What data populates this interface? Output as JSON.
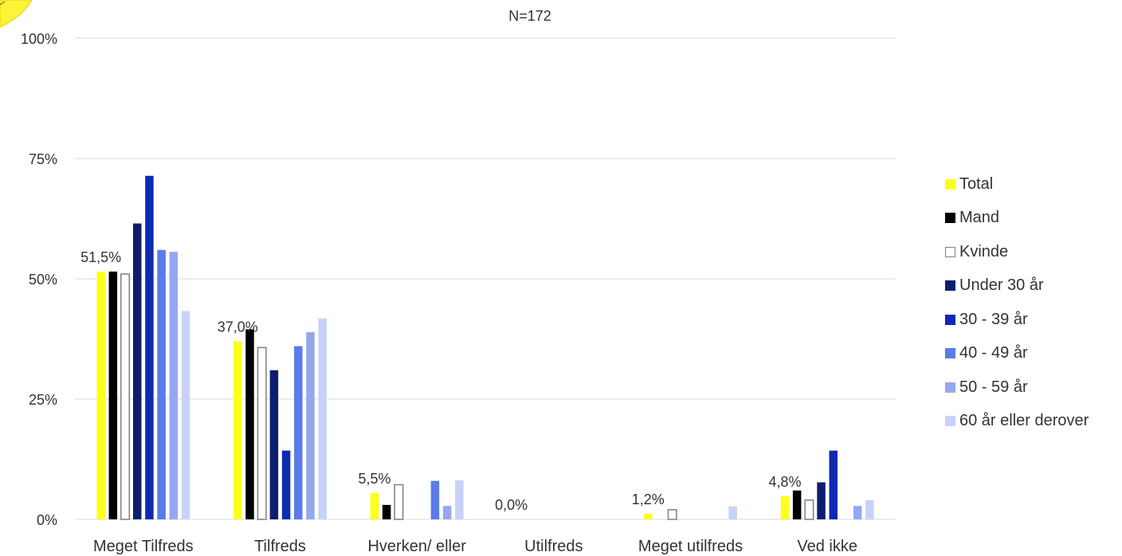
{
  "chart_data": {
    "type": "bar",
    "title": "",
    "subtitle": "N=172",
    "categories": [
      "Meget Tilfreds",
      "Tilfreds",
      "Hverken/ eller",
      "Utilfreds",
      "Meget utilfreds",
      "Ved ikke"
    ],
    "ylim": [
      0,
      100
    ],
    "yticks": [
      "0%",
      "25%",
      "50%",
      "75%",
      "100%"
    ],
    "grid": true,
    "legend_position": "right",
    "series": [
      {
        "name": "Total",
        "color": "#FFFF1A",
        "outline": false,
        "values": [
          51.5,
          37.0,
          5.5,
          0.0,
          1.2,
          4.8
        ],
        "labels": [
          "51,5%",
          "37,0%",
          "5,5%",
          "0,0%",
          "1,2%",
          "4,8%"
        ]
      },
      {
        "name": "Mand",
        "color": "#000000",
        "outline": false,
        "values": [
          51.5,
          39.5,
          3.0,
          0.0,
          0.0,
          6.0
        ]
      },
      {
        "name": "Kvinde",
        "color": "#FFFFFF",
        "outline": true,
        "values": [
          51.0,
          35.7,
          7.2,
          0.0,
          2.0,
          4.0
        ]
      },
      {
        "name": "Under 30 år",
        "color": "#0D1E6E",
        "outline": false,
        "values": [
          61.5,
          31.0,
          0.0,
          0.0,
          0.0,
          7.7
        ]
      },
      {
        "name": "30 - 39 år",
        "color": "#0E2BB0",
        "outline": false,
        "values": [
          71.4,
          14.3,
          0.0,
          0.0,
          0.0,
          14.3
        ]
      },
      {
        "name": "40 - 49 år",
        "color": "#5B7BE8",
        "outline": false,
        "values": [
          56.0,
          36.0,
          8.0,
          0.0,
          0.0,
          0.0
        ]
      },
      {
        "name": "50 - 59 år",
        "color": "#95A8EF",
        "outline": false,
        "values": [
          55.6,
          38.9,
          2.8,
          0.0,
          0.0,
          2.8
        ]
      },
      {
        "name": "60 år eller derover",
        "color": "#C8D2F8",
        "outline": false,
        "values": [
          43.3,
          41.8,
          8.1,
          0.0,
          2.7,
          4.0
        ]
      }
    ]
  }
}
